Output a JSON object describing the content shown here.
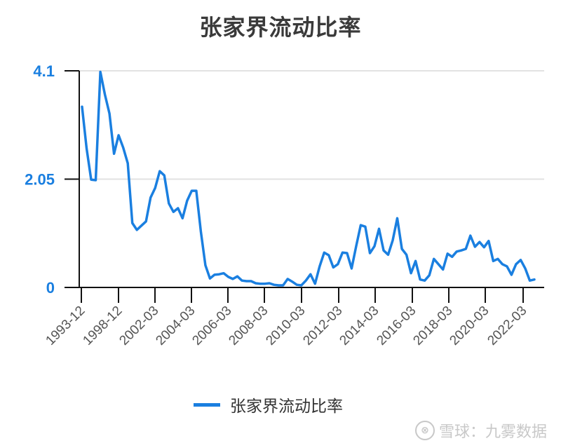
{
  "title": "张家界流动比率",
  "legend": {
    "label": "张家界流动比率",
    "color": "#1a7fe0"
  },
  "watermark": {
    "logo": "⊗",
    "text": "雪球：九雾数据"
  },
  "y_axis": {
    "ticks": [
      "4.1",
      "2.05",
      "0"
    ]
  },
  "x_axis": {
    "ticks": [
      "1993-12",
      "1998-12",
      "2002-03",
      "2004-03",
      "2006-03",
      "2008-03",
      "2010-03",
      "2012-03",
      "2014-03",
      "2016-03",
      "2018-03",
      "2020-03",
      "2022-03"
    ]
  },
  "chart_data": {
    "type": "line",
    "title": "张家界流动比率",
    "xlabel": "",
    "ylabel": "",
    "ylim": [
      0,
      4.1
    ],
    "yticks": [
      0,
      2.05,
      4.1
    ],
    "grid": true,
    "legend_position": "bottom",
    "x_tick_labels": [
      "1993-12",
      "1998-12",
      "2002-03",
      "2004-03",
      "2006-03",
      "2008-03",
      "2010-03",
      "2012-03",
      "2014-03",
      "2016-03",
      "2018-03",
      "2020-03",
      "2022-03"
    ],
    "series": [
      {
        "name": "张家界流动比率",
        "color": "#1a7fe0",
        "values": [
          3.42,
          2.63,
          2.04,
          2.03,
          4.08,
          3.65,
          3.29,
          2.53,
          2.88,
          2.65,
          2.35,
          1.22,
          1.09,
          1.17,
          1.25,
          1.7,
          1.88,
          2.2,
          2.12,
          1.59,
          1.43,
          1.5,
          1.31,
          1.64,
          1.83,
          1.83,
          1.06,
          0.42,
          0.17,
          0.24,
          0.25,
          0.27,
          0.2,
          0.16,
          0.21,
          0.13,
          0.12,
          0.12,
          0.08,
          0.07,
          0.07,
          0.08,
          0.05,
          0.04,
          0.04,
          0.16,
          0.11,
          0.05,
          0.04,
          0.13,
          0.25,
          0.07,
          0.4,
          0.66,
          0.61,
          0.38,
          0.44,
          0.66,
          0.65,
          0.36,
          0.78,
          1.18,
          1.15,
          0.65,
          0.78,
          1.11,
          0.7,
          0.62,
          0.89,
          1.31,
          0.73,
          0.62,
          0.27,
          0.5,
          0.15,
          0.13,
          0.23,
          0.54,
          0.44,
          0.34,
          0.64,
          0.58,
          0.68,
          0.7,
          0.73,
          0.98,
          0.77,
          0.86,
          0.76,
          0.88,
          0.5,
          0.54,
          0.44,
          0.4,
          0.24,
          0.44,
          0.52,
          0.36,
          0.13,
          0.15
        ]
      }
    ]
  }
}
